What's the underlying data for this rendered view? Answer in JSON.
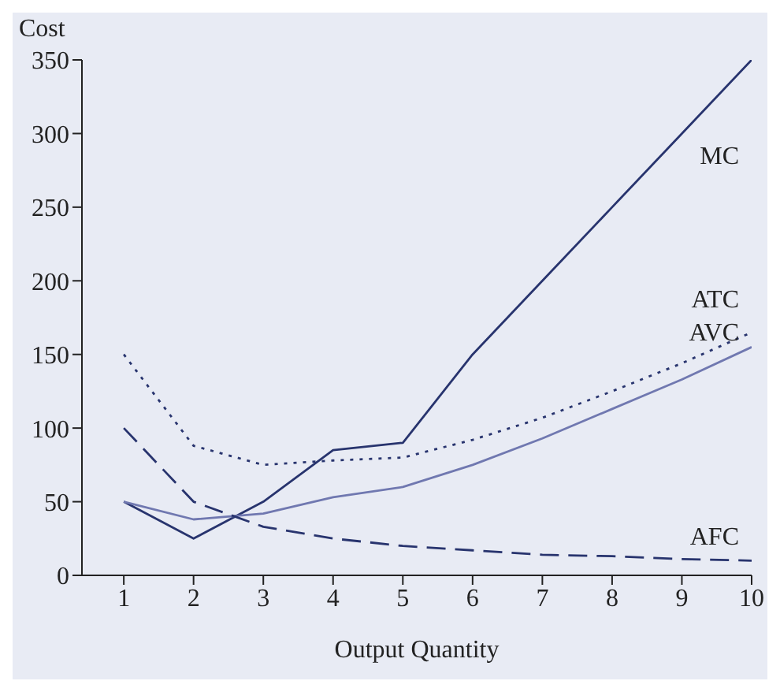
{
  "chart_data": {
    "type": "line",
    "xlabel": "Output Quantity",
    "ylabel": "Cost",
    "x": [
      1,
      2,
      3,
      4,
      5,
      6,
      7,
      8,
      9,
      10
    ],
    "xlim": [
      0.4,
      10
    ],
    "xticks": [
      1,
      2,
      3,
      4,
      5,
      6,
      7,
      8,
      9,
      10
    ],
    "ylim": [
      0,
      350
    ],
    "yticks": [
      0,
      50,
      100,
      150,
      200,
      250,
      300,
      350
    ],
    "grid": false,
    "legend": false,
    "marker": "none",
    "series": [
      {
        "name": "MC",
        "color": "#28346e",
        "line_style": "solid",
        "values": [
          50,
          25,
          50,
          85,
          90,
          150,
          200,
          250,
          300,
          350
        ]
      },
      {
        "name": "ATC",
        "color": "#28346e",
        "line_style": "dotted",
        "values": [
          150,
          88,
          75,
          78,
          80,
          92,
          107,
          125,
          144,
          165
        ]
      },
      {
        "name": "AVC",
        "color": "#7078b0",
        "line_style": "solid",
        "values": [
          50,
          38,
          42,
          53,
          60,
          75,
          93,
          113,
          133,
          155
        ]
      },
      {
        "name": "AFC",
        "color": "#28346e",
        "line_style": "dashed",
        "values": [
          100,
          50,
          33,
          25,
          20,
          17,
          14,
          13,
          11,
          10
        ]
      }
    ]
  }
}
